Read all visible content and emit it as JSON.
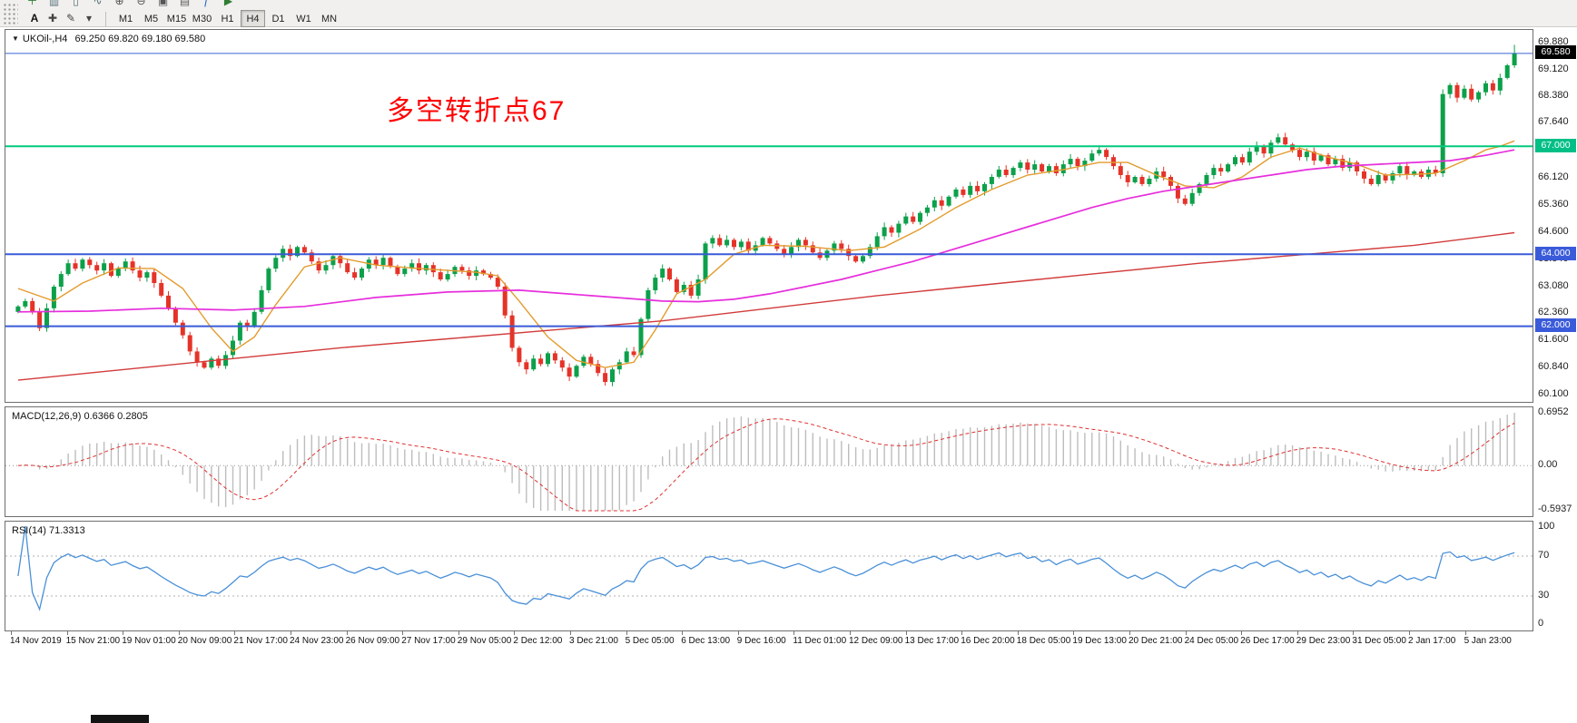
{
  "toolbar": {
    "upper_icons": [
      {
        "name": "new-order",
        "glyph": "＋",
        "color": "#2e7d32"
      },
      {
        "name": "bar-chart",
        "glyph": "▥",
        "color": "#546e7a"
      },
      {
        "name": "candlestick-chart",
        "glyph": "▯",
        "color": "#546e7a"
      },
      {
        "name": "line-chart",
        "glyph": "∿",
        "color": "#546e7a"
      },
      {
        "name": "zoom-in",
        "glyph": "⊕",
        "color": "#555555"
      },
      {
        "name": "zoom-out",
        "glyph": "⊖",
        "color": "#555555"
      },
      {
        "name": "new-chart",
        "glyph": "▣",
        "color": "#555555"
      },
      {
        "name": "profiles",
        "glyph": "▤",
        "color": "#555555"
      },
      {
        "name": "indicators",
        "glyph": "ƒ",
        "color": "#1565c0"
      },
      {
        "name": "auto-trading",
        "glyph": "▶",
        "color": "#2e7d32"
      }
    ],
    "tools": [
      {
        "name": "text-tool",
        "glyph": "A"
      },
      {
        "name": "crosshair-tool",
        "glyph": "✚"
      },
      {
        "name": "draw-tool",
        "glyph": "✎"
      },
      {
        "name": "draw-tool-dropdown",
        "glyph": "▾"
      }
    ],
    "timeframes": [
      "M1",
      "M5",
      "M15",
      "M30",
      "H1",
      "H4",
      "D1",
      "W1",
      "MN"
    ],
    "active_timeframe": "H4"
  },
  "main_chart": {
    "header": {
      "dropdown_glyph": "▼",
      "title": "UKOil-,H4",
      "ohlc_text": "69.250 69.820 69.180 69.580"
    },
    "annotation": {
      "text": "多空转折点67",
      "color": "#FF0000"
    },
    "scale": {
      "pmin": 60.1,
      "pmax": 69.88
    },
    "axis_ticks": [
      "69.880",
      "69.120",
      "68.380",
      "67.640",
      "66.860",
      "66.120",
      "65.360",
      "64.600",
      "63.840",
      "63.080",
      "62.360",
      "61.600",
      "60.840",
      "60.100"
    ],
    "price_markers": [
      {
        "role": "last-price-label",
        "value": "69.580",
        "price": 69.58,
        "bg": "#000000"
      },
      {
        "role": "green-line-label",
        "value": "67.000",
        "price": 67.0,
        "bg": "#00BF86"
      },
      {
        "role": "blue-line-upper-label",
        "value": "64.000",
        "price": 64.0,
        "bg": "#3A5BD9"
      },
      {
        "role": "blue-line-lower-label",
        "value": "62.000",
        "price": 62.0,
        "bg": "#3A5BD9"
      }
    ],
    "hlines": [
      {
        "role": "resistance-line-67",
        "price": 67.0,
        "color": "#00C97E",
        "width": 2
      },
      {
        "role": "support-line-64",
        "price": 64.0,
        "color": "#3A5BD9",
        "width": 2
      },
      {
        "role": "support-line-62",
        "price": 62.0,
        "color": "#3A5BD9",
        "width": 2
      },
      {
        "role": "bid-price-line",
        "price": 69.58,
        "color": "#3C64D0",
        "width": 1
      }
    ]
  },
  "macd_panel": {
    "label": "MACD(12,26,9) 0.6366 0.2805",
    "axis_ticks": [
      "0.6952",
      "0.00",
      "-0.5937"
    ],
    "scale": {
      "max": 0.6952,
      "min": -0.5937
    },
    "histogram_color": "#bdbdbd",
    "signal_color": "#e03030"
  },
  "rsi_panel": {
    "label": "RSI(14) 71.3313",
    "axis_ticks": [
      "100",
      "70",
      "30",
      "0"
    ],
    "levels": [
      70,
      30
    ],
    "line_color": "#4a90d8"
  },
  "chart_data": {
    "type": "candlestick",
    "symbol": "UKOil-",
    "timeframe": "H4",
    "title": "UKOil-,H4",
    "last_ohlc": {
      "open": 69.25,
      "high": 69.82,
      "low": 69.18,
      "close": 69.58
    },
    "first_open": 62.4,
    "up_color": "#0CA04A",
    "down_color": "#E53328",
    "closes": [
      62.55,
      62.7,
      62.4,
      61.95,
      62.5,
      63.1,
      63.45,
      63.75,
      63.6,
      63.85,
      63.7,
      63.55,
      63.75,
      63.4,
      63.6,
      63.8,
      63.55,
      63.35,
      63.5,
      63.2,
      62.85,
      62.5,
      62.1,
      61.75,
      61.3,
      61.0,
      60.85,
      61.1,
      60.9,
      61.2,
      61.6,
      62.1,
      62.0,
      62.4,
      63.0,
      63.6,
      63.9,
      64.15,
      63.95,
      64.2,
      64.05,
      63.8,
      63.55,
      63.7,
      63.95,
      63.75,
      63.5,
      63.35,
      63.6,
      63.85,
      63.7,
      63.9,
      63.65,
      63.45,
      63.6,
      63.75,
      63.55,
      63.7,
      63.5,
      63.3,
      63.45,
      63.65,
      63.55,
      63.4,
      63.55,
      63.45,
      63.35,
      63.1,
      62.3,
      61.4,
      61.0,
      60.8,
      61.1,
      60.95,
      61.25,
      61.05,
      60.85,
      60.6,
      60.9,
      61.15,
      60.95,
      60.7,
      60.45,
      60.8,
      61.0,
      61.3,
      61.2,
      62.2,
      63.0,
      63.35,
      63.6,
      63.3,
      62.95,
      63.15,
      62.85,
      63.3,
      64.3,
      64.45,
      64.25,
      64.4,
      64.2,
      64.35,
      64.1,
      64.25,
      64.45,
      64.3,
      64.15,
      64.0,
      64.2,
      64.4,
      64.25,
      64.05,
      63.9,
      64.1,
      64.3,
      64.15,
      63.95,
      63.8,
      63.95,
      64.2,
      64.5,
      64.75,
      64.6,
      64.85,
      65.05,
      64.9,
      65.15,
      65.3,
      65.5,
      65.35,
      65.6,
      65.8,
      65.65,
      65.9,
      65.75,
      65.95,
      66.15,
      66.35,
      66.2,
      66.4,
      66.55,
      66.35,
      66.5,
      66.3,
      66.45,
      66.25,
      66.5,
      66.65,
      66.45,
      66.6,
      66.8,
      66.9,
      66.7,
      66.45,
      66.2,
      66.0,
      66.15,
      65.95,
      66.1,
      66.3,
      66.15,
      65.9,
      65.55,
      65.4,
      65.7,
      65.95,
      66.2,
      66.4,
      66.3,
      66.5,
      66.7,
      66.55,
      66.85,
      67.0,
      66.8,
      67.1,
      67.25,
      67.05,
      66.9,
      66.7,
      66.85,
      66.6,
      66.75,
      66.5,
      66.65,
      66.4,
      66.55,
      66.3,
      66.1,
      65.95,
      66.2,
      66.05,
      66.25,
      66.45,
      66.2,
      66.3,
      66.15,
      66.35,
      66.25,
      68.45,
      68.7,
      68.35,
      68.6,
      68.3,
      68.5,
      68.75,
      68.55,
      68.9,
      69.25,
      69.58
    ],
    "moving_averages": [
      {
        "name": "ma-fast",
        "color": "#E39B2D",
        "width": 1.4,
        "anchors": [
          [
            0,
            63.05
          ],
          [
            5,
            62.7
          ],
          [
            9,
            63.2
          ],
          [
            14,
            63.62
          ],
          [
            19,
            63.6
          ],
          [
            23,
            63.05
          ],
          [
            27,
            61.95
          ],
          [
            30,
            61.3
          ],
          [
            33,
            61.7
          ],
          [
            36,
            62.6
          ],
          [
            40,
            63.65
          ],
          [
            45,
            63.9
          ],
          [
            50,
            63.7
          ],
          [
            55,
            63.62
          ],
          [
            60,
            63.55
          ],
          [
            64,
            63.5
          ],
          [
            67,
            63.4
          ],
          [
            70,
            62.7
          ],
          [
            74,
            61.7
          ],
          [
            78,
            61.05
          ],
          [
            82,
            60.85
          ],
          [
            86,
            61.0
          ],
          [
            89,
            61.9
          ],
          [
            92,
            62.9
          ],
          [
            96,
            63.3
          ],
          [
            100,
            64.0
          ],
          [
            104,
            64.25
          ],
          [
            110,
            64.22
          ],
          [
            116,
            64.1
          ],
          [
            121,
            64.2
          ],
          [
            126,
            64.7
          ],
          [
            131,
            65.3
          ],
          [
            136,
            65.8
          ],
          [
            141,
            66.2
          ],
          [
            146,
            66.35
          ],
          [
            151,
            66.55
          ],
          [
            155,
            66.55
          ],
          [
            159,
            66.2
          ],
          [
            163,
            65.9
          ],
          [
            167,
            65.85
          ],
          [
            171,
            66.15
          ],
          [
            175,
            66.7
          ],
          [
            179,
            66.95
          ],
          [
            183,
            66.7
          ],
          [
            187,
            66.5
          ],
          [
            191,
            66.2
          ],
          [
            195,
            66.22
          ],
          [
            198,
            66.25
          ],
          [
            202,
            66.6
          ],
          [
            205,
            66.9
          ],
          [
            207,
            67.0
          ],
          [
            209,
            67.15
          ]
        ]
      },
      {
        "name": "ma-mid",
        "color": "#E62EDC",
        "width": 1.7,
        "anchors": [
          [
            0,
            62.4
          ],
          [
            10,
            62.42
          ],
          [
            20,
            62.5
          ],
          [
            30,
            62.45
          ],
          [
            40,
            62.55
          ],
          [
            50,
            62.8
          ],
          [
            60,
            62.95
          ],
          [
            70,
            63.0
          ],
          [
            80,
            62.85
          ],
          [
            90,
            62.7
          ],
          [
            95,
            62.68
          ],
          [
            100,
            62.75
          ],
          [
            105,
            62.9
          ],
          [
            110,
            63.1
          ],
          [
            115,
            63.3
          ],
          [
            120,
            63.55
          ],
          [
            125,
            63.8
          ],
          [
            130,
            64.1
          ],
          [
            135,
            64.4
          ],
          [
            140,
            64.7
          ],
          [
            145,
            65.0
          ],
          [
            150,
            65.3
          ],
          [
            155,
            65.55
          ],
          [
            160,
            65.75
          ],
          [
            165,
            65.9
          ],
          [
            170,
            66.05
          ],
          [
            175,
            66.2
          ],
          [
            180,
            66.35
          ],
          [
            185,
            66.45
          ],
          [
            190,
            66.5
          ],
          [
            195,
            66.55
          ],
          [
            200,
            66.6
          ],
          [
            205,
            66.75
          ],
          [
            209,
            66.9
          ]
        ]
      },
      {
        "name": "ma-slow",
        "color": "#D23B3B",
        "width": 1.4,
        "anchors": [
          [
            0,
            60.5
          ],
          [
            15,
            60.8
          ],
          [
            30,
            61.1
          ],
          [
            45,
            61.4
          ],
          [
            60,
            61.65
          ],
          [
            75,
            61.9
          ],
          [
            90,
            62.15
          ],
          [
            105,
            62.5
          ],
          [
            120,
            62.85
          ],
          [
            135,
            63.15
          ],
          [
            150,
            63.45
          ],
          [
            165,
            63.75
          ],
          [
            180,
            64.0
          ],
          [
            195,
            64.25
          ],
          [
            209,
            64.6
          ]
        ]
      }
    ],
    "indicators": {
      "macd": {
        "fast": 12,
        "slow": 26,
        "signal": 9,
        "current_main": 0.6366,
        "current_signal": 0.2805,
        "axis_max": 0.6952,
        "axis_min": -0.5937
      },
      "rsi": {
        "period": 14,
        "current": 71.3313,
        "levels": [
          70,
          30
        ],
        "range": [
          0,
          100
        ]
      }
    },
    "time_labels": [
      "14 Nov 2019",
      "15 Nov 21:00",
      "19 Nov 01:00",
      "20 Nov 09:00",
      "21 Nov 17:00",
      "24 Nov 23:00",
      "26 Nov 09:00",
      "27 Nov 17:00",
      "29 Nov 05:00",
      "2 Dec 12:00",
      "3 Dec 21:00",
      "5 Dec 05:00",
      "6 Dec 13:00",
      "9 Dec 16:00",
      "11 Dec 01:00",
      "12 Dec 09:00",
      "13 Dec 17:00",
      "16 Dec 20:00",
      "18 Dec 05:00",
      "19 Dec 13:00",
      "20 Dec 21:00",
      "24 Dec 05:00",
      "26 Dec 17:00",
      "29 Dec 23:00",
      "31 Dec 05:00",
      "2 Jan 17:00",
      "5 Jan 23:00"
    ]
  }
}
